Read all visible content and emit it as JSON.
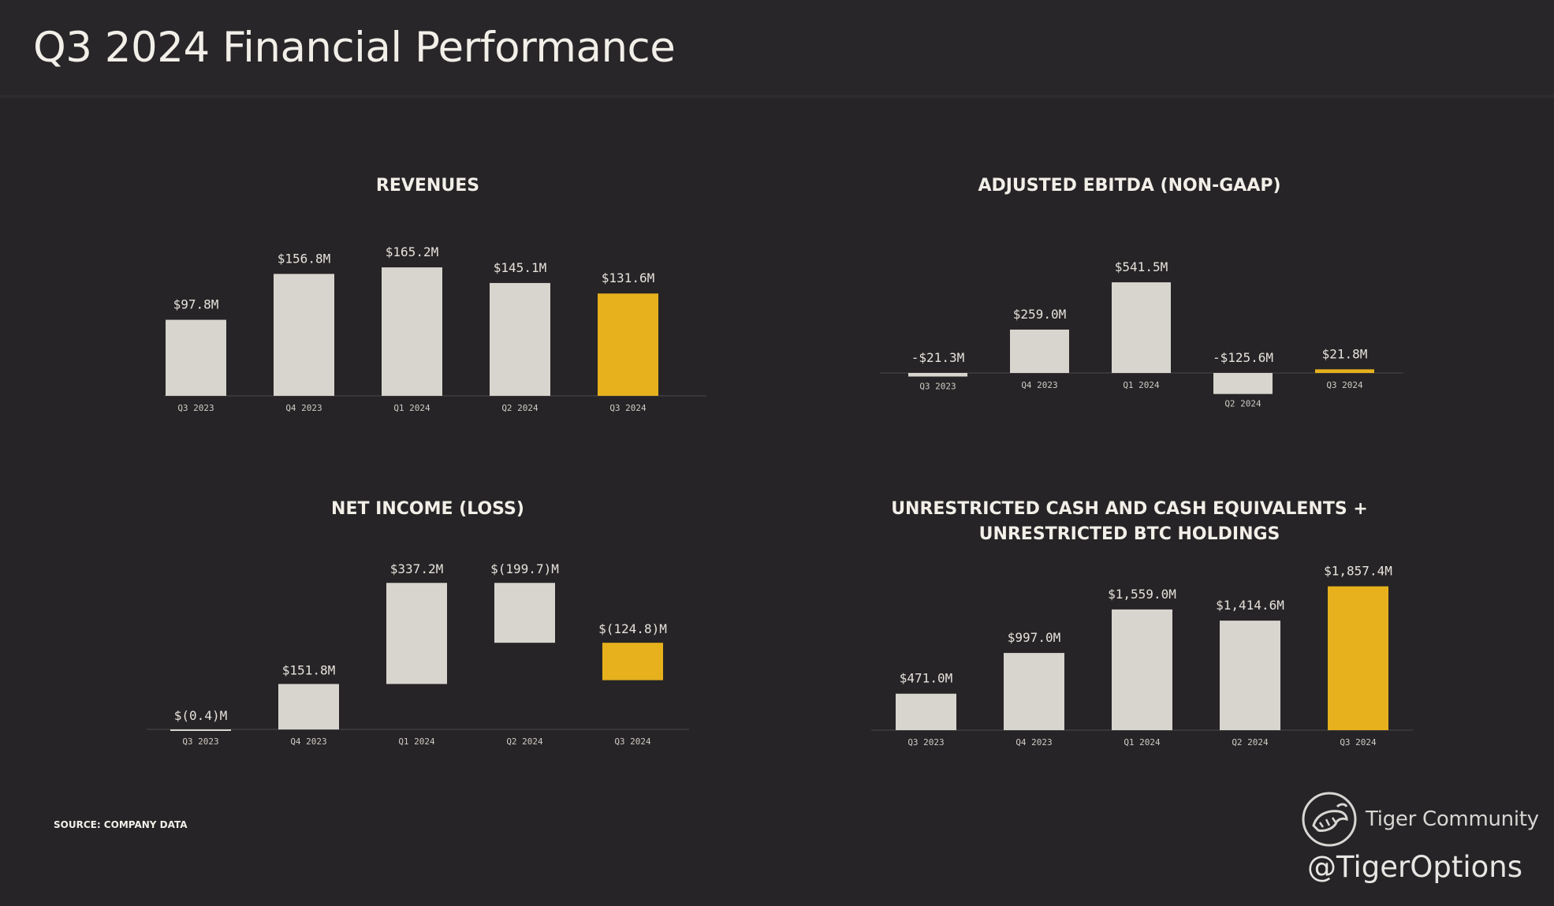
{
  "page": {
    "title": "Q3 2024 Financial Performance",
    "source": "SOURCE: COMPANY DATA",
    "brand_name": "Tiger Community",
    "brand_handle": "@TigerOptions"
  },
  "colors": {
    "background": "#262426",
    "bar": "#d8d5cf",
    "highlight": "#e6b11d",
    "baseline": "#3e3c3e",
    "text": "#f2efe9"
  },
  "chart_data": [
    {
      "type": "bar",
      "title": "REVENUES",
      "categories": [
        "Q3 2023",
        "Q4 2023",
        "Q1 2024",
        "Q2 2024",
        "Q3 2024"
      ],
      "values": [
        97.8,
        156.8,
        165.2,
        145.1,
        131.6
      ],
      "labels": [
        "$97.8M",
        "$156.8M",
        "$165.2M",
        "$145.1M",
        "$131.6M"
      ],
      "highlight_index": 4,
      "ylim": [
        0,
        175
      ],
      "grid": false,
      "legend": "none"
    },
    {
      "type": "bar",
      "title": "ADJUSTED EBITDA (NON-GAAP)",
      "categories": [
        "Q3 2023",
        "Q4 2023",
        "Q1 2024",
        "Q2 2024",
        "Q3 2024"
      ],
      "values": [
        -21.3,
        259.0,
        541.5,
        -125.6,
        21.8
      ],
      "labels": [
        "-$21.3M",
        "$259.0M",
        "$541.5M",
        "-$125.6M",
        "$21.8M"
      ],
      "highlight_index": 4,
      "ylim": [
        -150,
        575
      ],
      "grid": false,
      "legend": "none"
    },
    {
      "type": "bar",
      "title": "NET INCOME (LOSS)",
      "categories": [
        "Q3 2023",
        "Q4 2023",
        "Q1 2024",
        "Q2 2024",
        "Q3 2024"
      ],
      "values": [
        -0.4,
        151.8,
        337.2,
        -199.7,
        -124.8
      ],
      "labels": [
        "$(0.4)M",
        "$151.8M",
        "$337.2M",
        "$(199.7)M",
        "$(124.8)M"
      ],
      "highlight_index": 4,
      "waterfall": true,
      "ylim": [
        0,
        520
      ],
      "grid": false,
      "legend": "none"
    },
    {
      "type": "bar",
      "title": "UNRESTRICTED CASH AND CASH EQUIVALENTS + UNRESTRICTED BTC HOLDINGS",
      "categories": [
        "Q3 2023",
        "Q4 2023",
        "Q1 2024",
        "Q2 2024",
        "Q3 2024"
      ],
      "values": [
        471.0,
        997.0,
        1559.0,
        1414.6,
        1857.4
      ],
      "labels": [
        "$471.0M",
        "$997.0M",
        "$1,559.0M",
        "$1,414.6M",
        "$1,857.4M"
      ],
      "highlight_index": 4,
      "ylim": [
        0,
        2000
      ],
      "grid": false,
      "legend": "none"
    }
  ]
}
